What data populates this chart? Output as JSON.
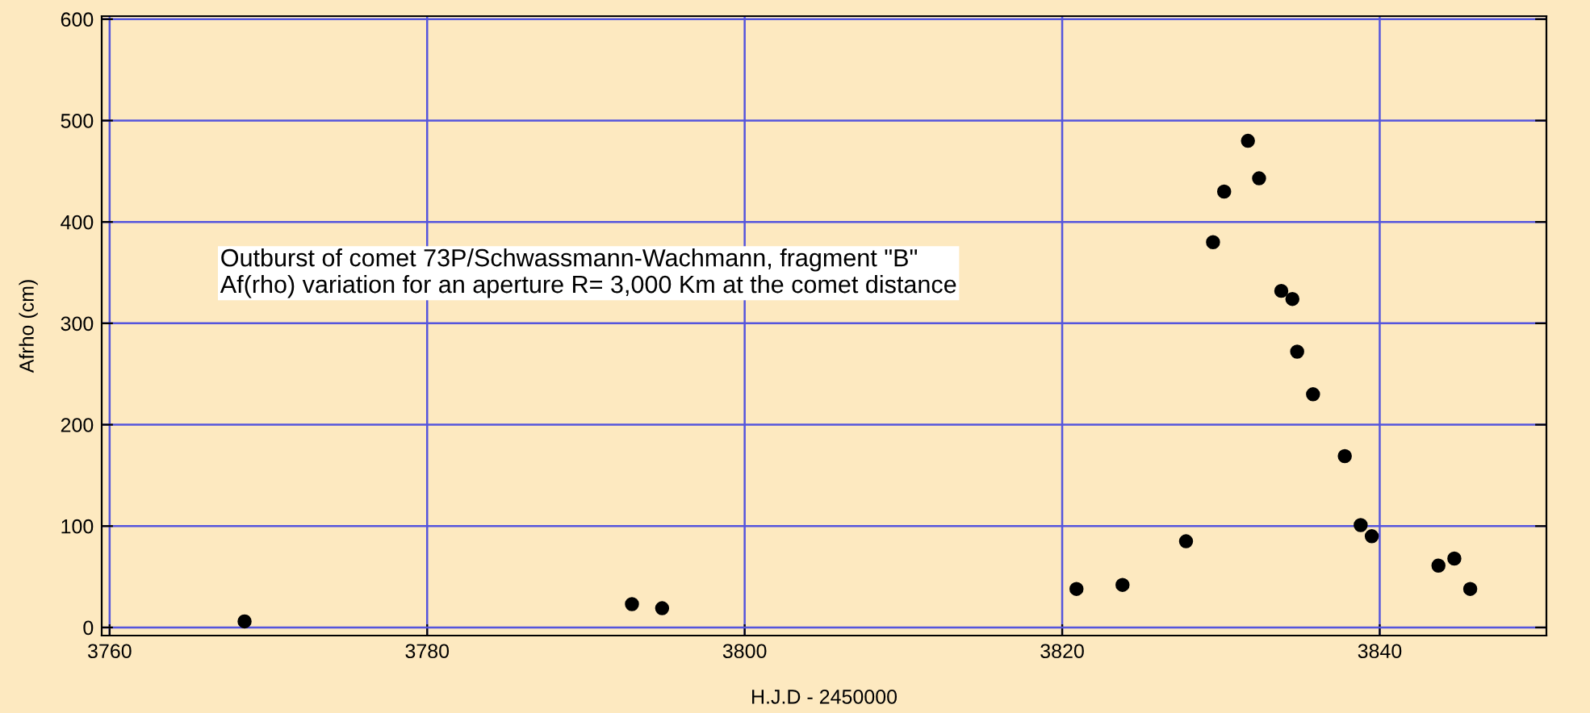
{
  "chart_data": {
    "type": "scatter",
    "xlabel": "H.J.D - 2450000",
    "ylabel": "Afrho (cm)",
    "annotations": [
      "Outburst of comet 73P/Schwassmann-Wachmann, fragment \"B\"\nAf(rho) variation for an aperture R= 3,000 Km at the comet distance"
    ],
    "series": [
      {
        "color": "#000000",
        "x": [
          3768.5,
          3792.9,
          3794.8,
          3820.9,
          3823.8,
          3827.8,
          3829.5,
          3830.2,
          3831.7,
          3832.4,
          3833.8,
          3834.5,
          3834.8,
          3835.8,
          3837.8,
          3838.8,
          3839.5,
          3843.7,
          3844.7,
          3845.7
        ],
        "values": [
          6,
          23,
          19,
          38,
          42,
          85,
          380,
          430,
          480,
          443,
          332,
          324,
          272,
          230,
          169,
          101,
          90,
          61,
          68,
          38
        ]
      }
    ],
    "marker": "circle",
    "grid": true,
    "xlim": [
      3759.5,
      3850.5
    ],
    "xticks": [
      3760,
      3780,
      3800,
      3820,
      3840
    ],
    "ylim": [
      -8,
      603
    ],
    "yticks": [
      0,
      100,
      200,
      300,
      400,
      500,
      600
    ]
  }
}
